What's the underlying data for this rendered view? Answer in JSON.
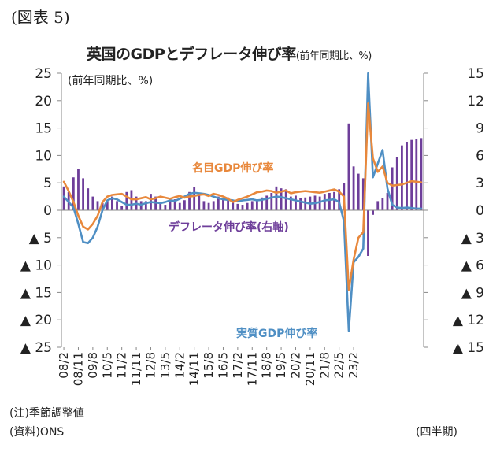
{
  "figure_label": "(図表 5)",
  "chart_data": {
    "type": "line",
    "title": "英国のGDPとデフレータ伸び率",
    "title_unit": "(前年同期比、%)",
    "left_axis_unit": "(前年同期比、%)",
    "x_tick_labels": [
      "08/2",
      "08/11",
      "09/8",
      "10/5",
      "11/2",
      "11/11",
      "12/8",
      "13/5",
      "14/2",
      "14/11",
      "15/8",
      "16/5",
      "17/2",
      "17/11",
      "18/8",
      "19/5",
      "20/2",
      "20/11",
      "21/8",
      "22/5",
      "23/2"
    ],
    "y_left": {
      "range": [
        -25,
        25
      ],
      "tick_labels": [
        "25",
        "20",
        "15",
        "10",
        "5",
        "0",
        "▲ 5",
        "▲ 10",
        "▲ 15",
        "▲ 20",
        "▲ 25"
      ]
    },
    "y_right": {
      "range": [
        -15,
        15
      ],
      "tick_labels": [
        "15",
        "12",
        "9",
        "6",
        "3",
        "0",
        "▲ 3",
        "▲ 6",
        "▲ 9",
        "▲ 12",
        "▲ 15"
      ]
    },
    "grid": false,
    "series": [
      {
        "name": "名目GDP伸び率",
        "kind": "line",
        "axis": "left",
        "color": "#E8883C",
        "values": [
          5.2,
          3.5,
          1.5,
          -1.0,
          -3.0,
          -3.5,
          -2.5,
          -1.0,
          1.5,
          2.5,
          2.8,
          2.9,
          3.0,
          2.5,
          2.0,
          2.0,
          2.2,
          2.4,
          2.0,
          2.2,
          2.5,
          2.3,
          2.1,
          2.4,
          2.6,
          2.3,
          2.5,
          2.6,
          2.8,
          2.9,
          2.6,
          3.0,
          2.8,
          2.5,
          2.1,
          1.5,
          1.9,
          2.2,
          2.5,
          2.9,
          3.3,
          3.4,
          3.6,
          3.5,
          3.2,
          3.4,
          3.6,
          3.1,
          3.3,
          3.4,
          3.5,
          3.4,
          3.3,
          3.2,
          3.4,
          3.6,
          3.8,
          3.4,
          2.5,
          -14.5,
          -9.0,
          -5.0,
          -4.0,
          19.5,
          9.5,
          7.0,
          8.0,
          5.0,
          4.5,
          4.6,
          4.7,
          5.0,
          5.3,
          5.2,
          5.1
        ]
      },
      {
        "name": "実質GDP伸び率",
        "kind": "line",
        "axis": "left",
        "color": "#4F8FC4",
        "values": [
          2.5,
          1.5,
          0.5,
          -2.5,
          -5.8,
          -6.0,
          -5.0,
          -3.0,
          0.0,
          1.8,
          2.2,
          2.0,
          1.5,
          1.0,
          1.0,
          1.2,
          1.0,
          1.3,
          1.5,
          1.4,
          1.3,
          1.5,
          1.8,
          1.7,
          2.1,
          2.5,
          3.0,
          3.2,
          3.1,
          3.0,
          2.8,
          2.5,
          2.2,
          2.0,
          1.9,
          1.8,
          1.6,
          1.8,
          1.9,
          2.0,
          1.8,
          1.9,
          2.1,
          2.3,
          2.5,
          2.4,
          2.2,
          2.0,
          1.8,
          1.6,
          1.4,
          1.2,
          1.3,
          1.5,
          1.8,
          1.9,
          2.0,
          1.5,
          -2.0,
          -22.0,
          -9.5,
          -8.5,
          -7.0,
          25.0,
          6.0,
          8.5,
          11.0,
          4.0,
          1.0,
          0.5,
          0.4,
          0.5,
          0.4,
          0.3,
          0.3
        ]
      },
      {
        "name": "デフレータ伸び率(右軸)",
        "kind": "bar",
        "axis": "right",
        "color": "#6E3E9A",
        "values": [
          2.6,
          2.0,
          3.6,
          4.5,
          3.5,
          2.4,
          1.5,
          1.0,
          0.8,
          1.0,
          1.5,
          1.0,
          0.5,
          2.0,
          2.2,
          1.5,
          1.0,
          1.0,
          1.8,
          1.5,
          0.8,
          0.6,
          1.0,
          1.2,
          0.8,
          1.1,
          2.0,
          2.5,
          1.9,
          1.0,
          0.8,
          1.0,
          1.5,
          1.3,
          1.4,
          1.0,
          0.7,
          0.6,
          0.8,
          1.0,
          1.2,
          1.4,
          1.6,
          1.9,
          2.6,
          2.4,
          2.3,
          1.5,
          1.6,
          1.3,
          1.4,
          1.5,
          1.6,
          1.5,
          1.8,
          1.9,
          2.0,
          2.3,
          3.0,
          9.5,
          4.8,
          4.0,
          3.5,
          -5.0,
          -0.5,
          1.0,
          1.3,
          1.9,
          4.7,
          5.8,
          7.1,
          7.5,
          7.7,
          7.8,
          7.9
        ]
      }
    ],
    "annotations": [
      {
        "text": "名目GDP伸び率",
        "color": "#E8883C"
      },
      {
        "text": "デフレータ伸び率(右軸)",
        "color": "#6E3E9A"
      },
      {
        "text": "実質GDP伸び率",
        "color": "#4F8FC4"
      }
    ]
  },
  "footer": {
    "note": "(注)季節調整値",
    "source": "(資料)ONS",
    "period": "(四半期)"
  }
}
